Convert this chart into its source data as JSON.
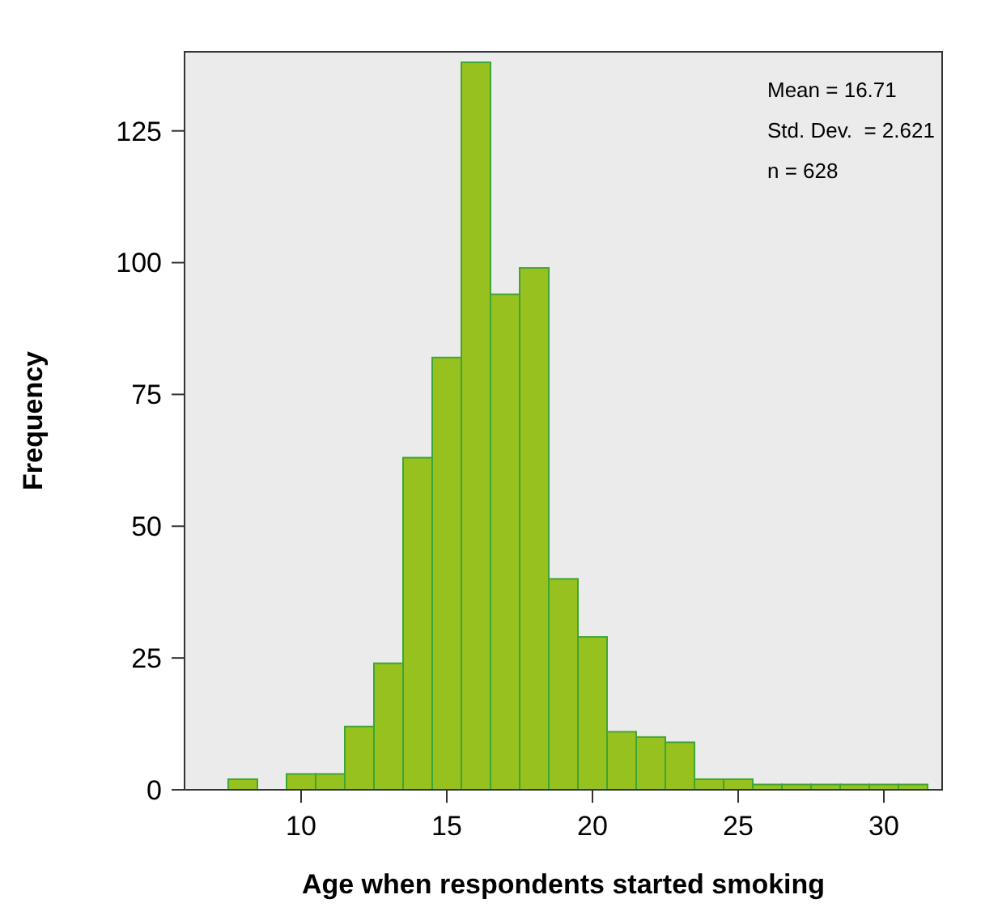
{
  "chart_data": {
    "type": "histogram",
    "xlabel": "Age when respondents started smoking",
    "ylabel": "Frequency",
    "bins": [
      7.5,
      8.5,
      9.5,
      10.5,
      11.5,
      12.5,
      13.5,
      14.5,
      15.5,
      16.5,
      17.5,
      18.5,
      19.5,
      20.5,
      21.5,
      22.5,
      23.5,
      24.5,
      25.5,
      26.5,
      27.5,
      28.5,
      29.5,
      30.5,
      31.5
    ],
    "values": [
      2,
      0,
      3,
      3,
      12,
      24,
      63,
      82,
      138,
      94,
      99,
      40,
      29,
      11,
      10,
      9,
      2,
      2,
      1,
      1,
      1,
      1,
      1,
      1
    ],
    "color": "#96c11f",
    "xlim": [
      6,
      32
    ],
    "xticks": [
      10,
      15,
      20,
      25,
      30
    ],
    "ylim": [
      0,
      140
    ],
    "yticks": [
      0,
      25,
      50,
      75,
      100,
      125
    ],
    "annotations": [
      "Mean = 16.71",
      "Std. Dev.  = 2.621",
      "n = 628"
    ],
    "grid": false
  }
}
